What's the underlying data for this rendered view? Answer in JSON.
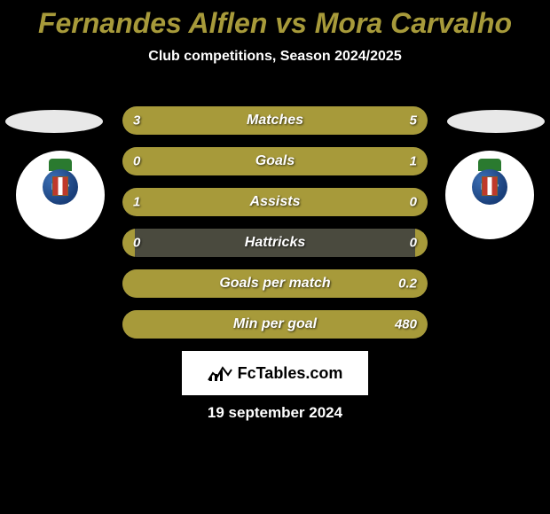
{
  "title_color": "#a79a3a",
  "title": "Fernandes Alflen vs Mora Carvalho",
  "subtitle": "Club competitions, Season 2024/2025",
  "bar_colors": {
    "background": "#4a4a3e",
    "left_fill": "#a79a3a",
    "right_fill": "#a79a3a"
  },
  "stats": [
    {
      "label": "Matches",
      "left_val": "3",
      "right_val": "5",
      "left_pct": 37.5,
      "right_pct": 62.5
    },
    {
      "label": "Goals",
      "left_val": "0",
      "right_val": "1",
      "left_pct": 4,
      "right_pct": 96
    },
    {
      "label": "Assists",
      "left_val": "1",
      "right_val": "0",
      "left_pct": 96,
      "right_pct": 4
    },
    {
      "label": "Hattricks",
      "left_val": "0",
      "right_val": "0",
      "left_pct": 4,
      "right_pct": 4
    },
    {
      "label": "Goals per match",
      "left_val": "",
      "right_val": "0.2",
      "left_pct": 4,
      "right_pct": 96
    },
    {
      "label": "Min per goal",
      "left_val": "",
      "right_val": "480",
      "left_pct": 4,
      "right_pct": 96
    }
  ],
  "club_left": {
    "initials": "FCP"
  },
  "club_right": {
    "initials": "FCP"
  },
  "brand": "FcTables.com",
  "date": "19 september 2024"
}
